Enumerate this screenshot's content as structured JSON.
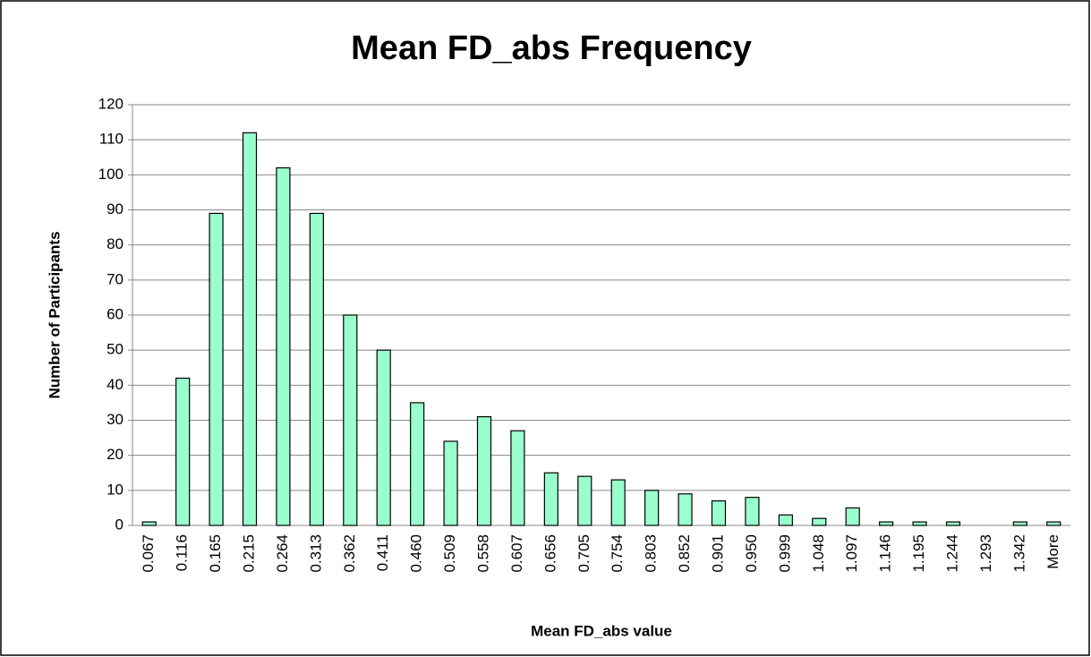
{
  "chart_data": {
    "type": "bar",
    "title": "Mean FD_abs Frequency",
    "x_label": "Mean FD_abs value",
    "y_label": "Number of Participants",
    "categories": [
      "0.067",
      "0.116",
      "0.165",
      "0.215",
      "0.264",
      "0.313",
      "0.362",
      "0.411",
      "0.460",
      "0.509",
      "0.558",
      "0.607",
      "0.656",
      "0.705",
      "0.754",
      "0.803",
      "0.852",
      "0.901",
      "0.950",
      "0.999",
      "1.048",
      "1.097",
      "1.146",
      "1.195",
      "1.244",
      "1.293",
      "1.342",
      "More"
    ],
    "values": [
      1,
      42,
      89,
      112,
      102,
      89,
      60,
      50,
      35,
      24,
      31,
      27,
      15,
      14,
      13,
      10,
      9,
      7,
      8,
      3,
      2,
      5,
      1,
      1,
      1,
      0,
      1,
      1
    ],
    "color": "#99ffcc",
    "ylim": [
      0,
      120
    ],
    "yticks": [
      0,
      10,
      20,
      30,
      40,
      50,
      60,
      70,
      80,
      90,
      100,
      110,
      120
    ],
    "grid": true
  }
}
